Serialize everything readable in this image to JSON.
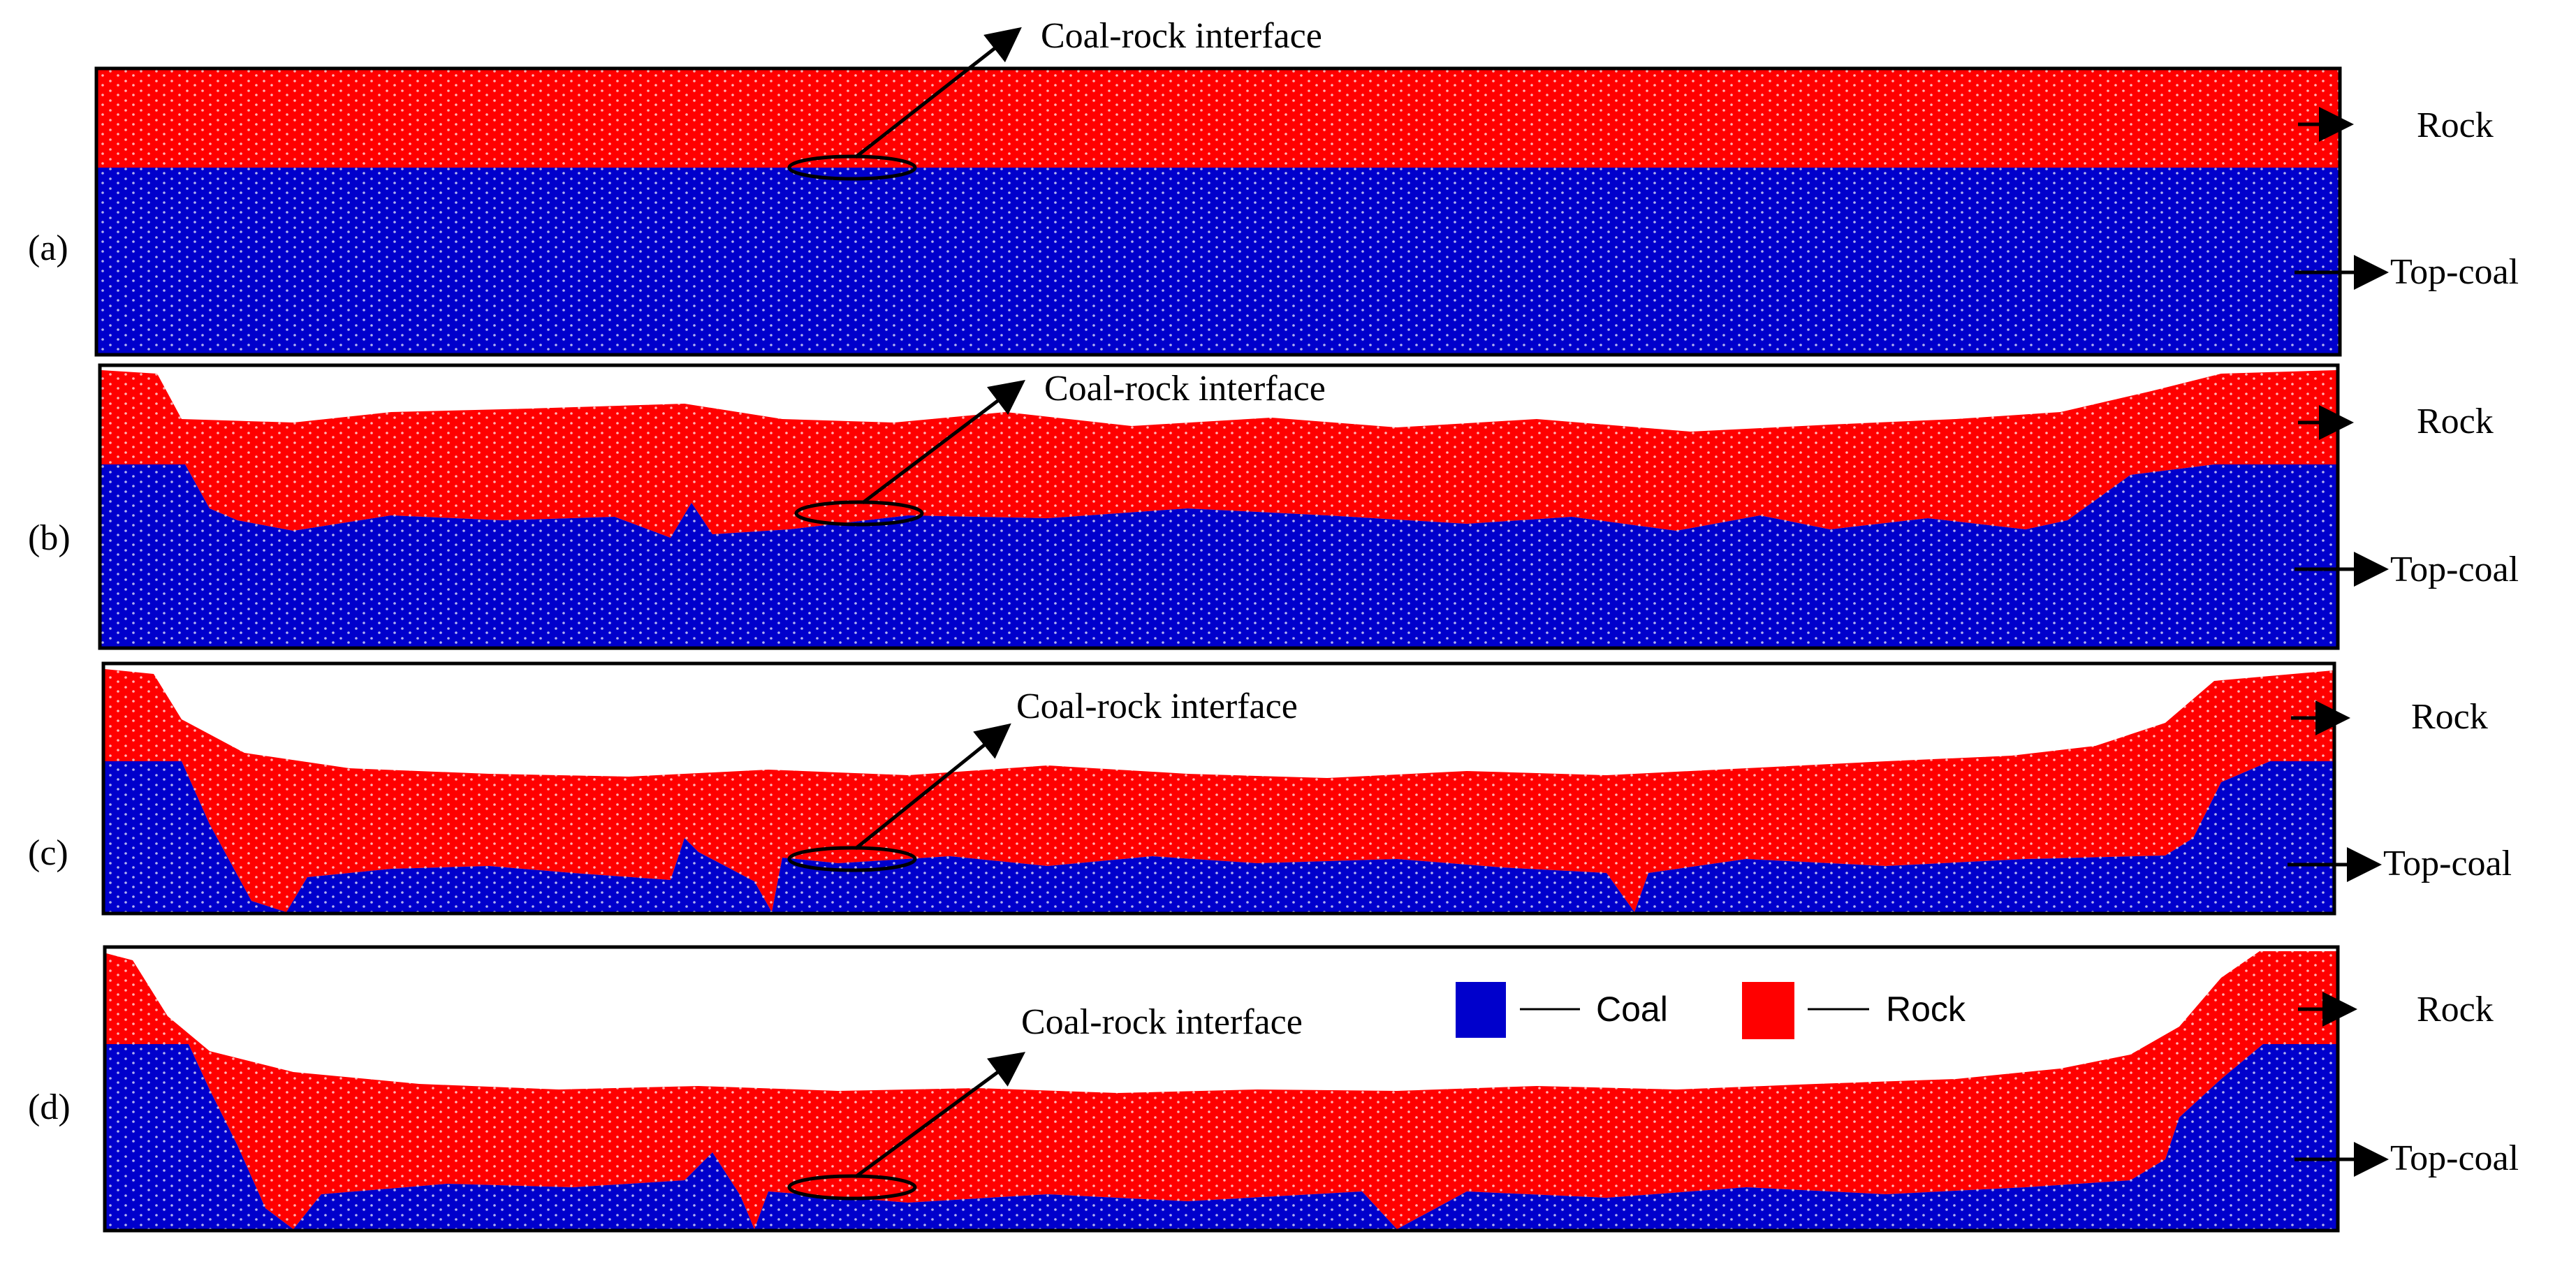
{
  "panels": [
    {
      "id": "a",
      "label": "(a)",
      "interface_label": "Coal-rock interface",
      "rock_label": "Rock",
      "topcoal_label": "Top-coal"
    },
    {
      "id": "b",
      "label": "(b)",
      "interface_label": "Coal-rock interface",
      "rock_label": "Rock",
      "topcoal_label": "Top-coal"
    },
    {
      "id": "c",
      "label": "(c)",
      "interface_label": "Coal-rock interface",
      "rock_label": "Rock",
      "topcoal_label": "Top-coal"
    },
    {
      "id": "d",
      "label": "(d)",
      "interface_label": "Coal-rock interface",
      "rock_label": "Rock",
      "topcoal_label": "Top-coal"
    }
  ],
  "legend": {
    "items": [
      {
        "label": "Coal",
        "color": "#0000cc"
      },
      {
        "label": "Rock",
        "color": "#ff0000"
      }
    ]
  },
  "colors": {
    "coal": "#0000cc",
    "rock": "#ff0000",
    "frame": "#000000"
  }
}
